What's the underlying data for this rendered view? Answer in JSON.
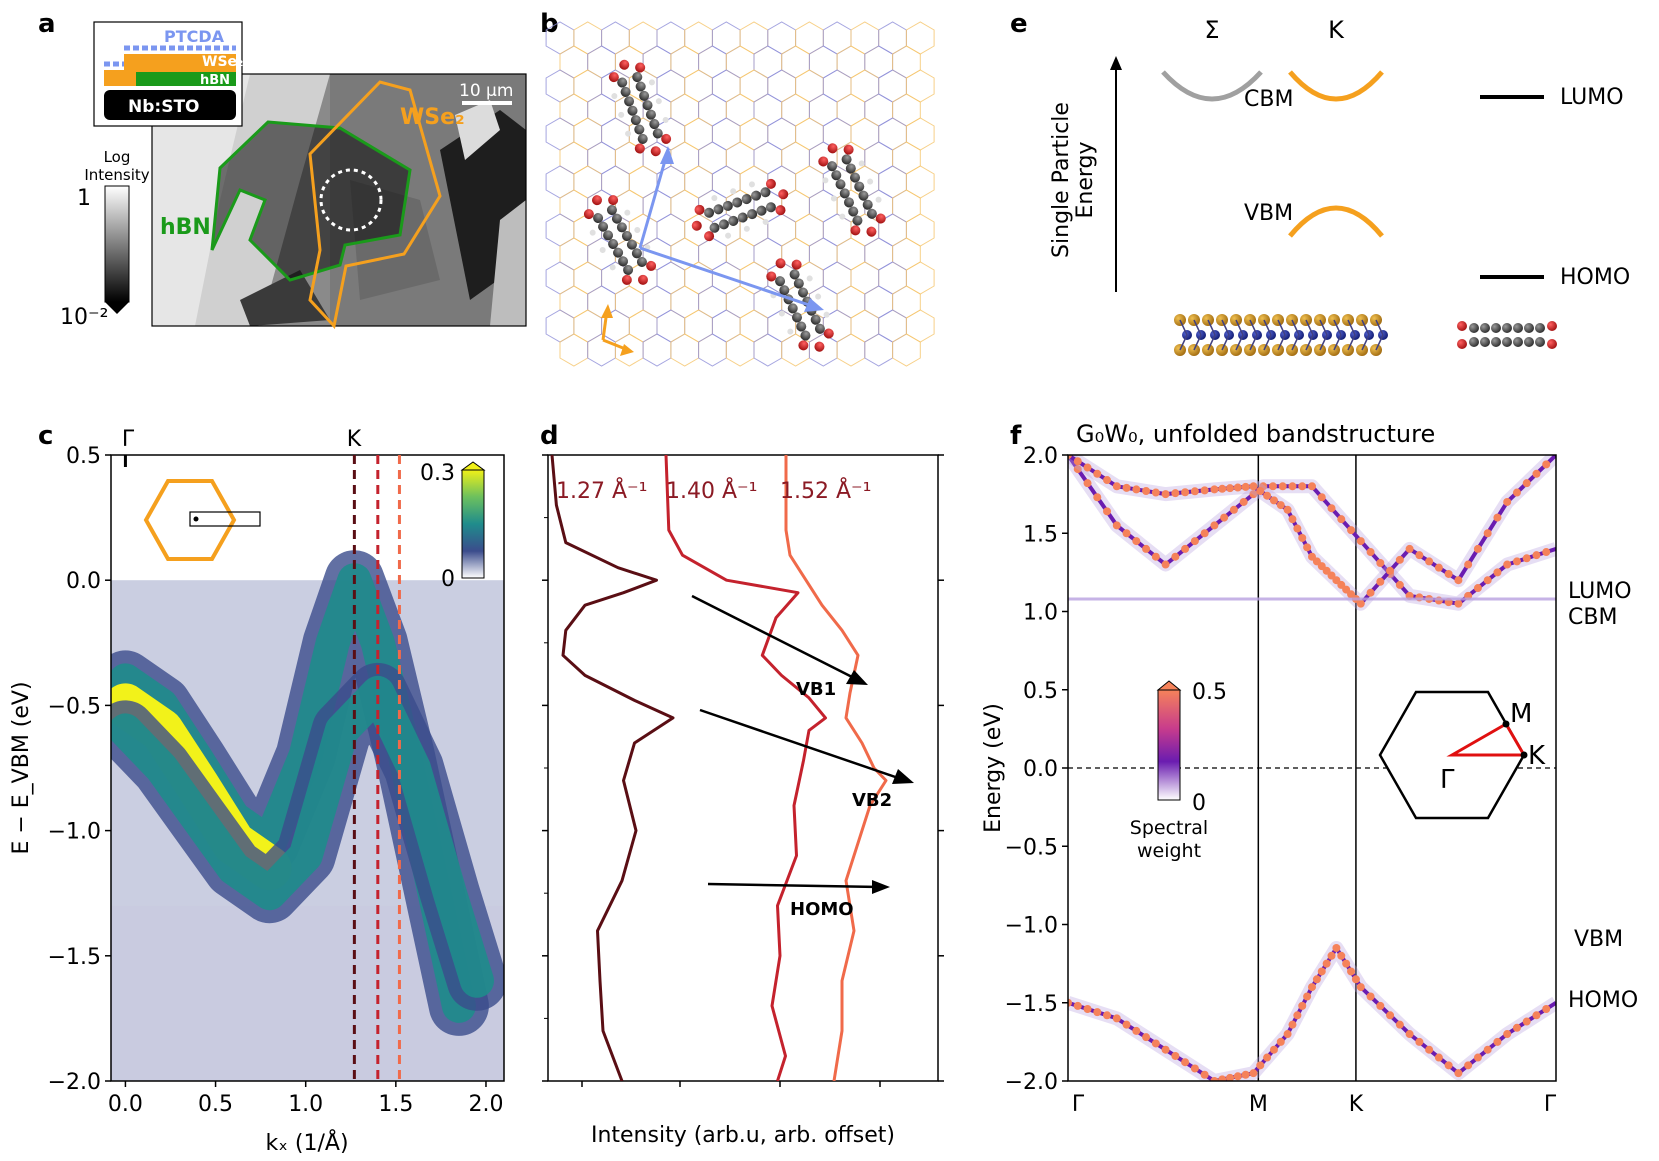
{
  "panel_letters": {
    "a": "a",
    "b": "b",
    "c": "c",
    "d": "d",
    "e": "e",
    "f": "f"
  },
  "panel_a": {
    "stack_layers": [
      "PTCDA",
      "WSe₂",
      "hBN",
      "Nb:STO"
    ],
    "colorbar_title": [
      "Log",
      "Intensity"
    ],
    "colorbar_max": "1",
    "colorbar_min": "10⁻²",
    "scalebar": "10 μm",
    "label_hbn": "hBN",
    "label_wse2": "WSe₂",
    "colors": {
      "ptcda": "#7b96f0",
      "wse2": "#f5a01e",
      "hbn": "#1a9a1a",
      "substrate": "#000000"
    }
  },
  "panel_b": {
    "lattice_colors": {
      "a": "#f5c46a",
      "b": "#8f8fd8"
    },
    "vector_colors": {
      "molecule": "#7b96f0",
      "substrate": "#f5a01e"
    }
  },
  "panel_e": {
    "ylabel": [
      "Single Particle",
      "Energy"
    ],
    "top_labels": [
      "Σ",
      "K"
    ],
    "level_labels": [
      "CBM",
      "VBM",
      "LUMO",
      "HOMO"
    ]
  },
  "panel_c": {
    "top_labels": [
      "Γ",
      "K"
    ],
    "xlabel": "kₓ (1/Å)",
    "ylabel": "E − E_VBM (eV)",
    "xticks": [
      "0.0",
      "0.5",
      "1.0",
      "1.5",
      "2.0"
    ],
    "yticks": [
      "0.5",
      "0.0",
      "−0.5",
      "−1.0",
      "−1.5",
      "−2.0"
    ],
    "colorbar_ticks": [
      "0.3",
      "0"
    ],
    "cut_colors": [
      "#5a0e14",
      "#c4222d",
      "#f06a4a"
    ]
  },
  "panel_d": {
    "cut_labels": [
      "1.27 Å⁻¹",
      "1.40 Å⁻¹",
      "1.52 Å⁻¹"
    ],
    "arrow_labels": [
      "VB1",
      "VB2",
      "HOMO"
    ],
    "xlabel": "Intensity (arb.u, arb. offset)"
  },
  "panel_f": {
    "title": "G₀W₀, unfolded bandstructure",
    "ylabel": "Energy (eV)",
    "yticks": [
      "2.0",
      "1.5",
      "1.0",
      "0.5",
      "0.0",
      "−0.5",
      "−1.0",
      "−1.5",
      "−2.0"
    ],
    "xticks": [
      "Γ",
      "M",
      "K",
      "Γ"
    ],
    "side_labels": [
      "LUMO",
      "CBM",
      "VBM",
      "HOMO"
    ],
    "colorbar_ticks": [
      "0.5",
      "0"
    ],
    "colorbar_label": [
      "Spectral",
      "weight"
    ],
    "bz_labels": [
      "M",
      "K",
      "Γ"
    ]
  },
  "chart_data": [
    {
      "type": "heatmap",
      "xlabel": "kₓ (1/Å)",
      "ylabel": "E − E_VBM (eV)",
      "xlim": [
        -0.08,
        2.1
      ],
      "ylim": [
        -2.0,
        0.5
      ],
      "clim": [
        0,
        0.3
      ],
      "vertical_cuts": [
        1.27,
        1.4,
        1.52
      ],
      "bands": [
        {
          "name": "",
          "x": [
            0.0,
            0.2,
            0.4,
            0.6,
            0.8,
            1.0,
            1.15,
            1.27,
            1.4,
            1.55,
            1.7,
            1.85
          ],
          "y": [
            -0.4,
            -0.5,
            -0.72,
            -0.95,
            -1.05,
            -0.7,
            -0.25,
            0.0,
            -0.25,
            -0.7,
            -1.2,
            -1.7
          ]
        },
        {
          "name": "",
          "x": [
            0.0,
            0.2,
            0.4,
            0.6,
            0.8,
            1.0,
            1.2,
            1.4,
            1.6,
            1.8,
            1.95
          ],
          "y": [
            -0.6,
            -0.75,
            -0.95,
            -1.15,
            -1.25,
            -1.1,
            -0.6,
            -0.45,
            -0.75,
            -1.25,
            -1.6
          ]
        }
      ]
    },
    {
      "type": "line",
      "xlabel": "Intensity (arb.u, arb. offset)",
      "ylim": [
        -2.0,
        0.5
      ],
      "series": [
        {
          "name": "1.27 Å⁻¹",
          "y": [
            0.5,
            0.3,
            0.15,
            0.05,
            0.0,
            -0.05,
            -0.1,
            -0.2,
            -0.3,
            -0.38,
            -0.48,
            -0.55,
            -0.65,
            -0.8,
            -1.0,
            -1.2,
            -1.4,
            -1.6,
            -1.8,
            -2.0
          ],
          "x": [
            0.0,
            0.08,
            0.25,
            1.2,
            1.9,
            1.3,
            0.6,
            0.25,
            0.2,
            0.6,
            1.5,
            2.2,
            1.5,
            1.3,
            1.6,
            1.2,
            0.9,
            0.8,
            1.0,
            1.2
          ]
        },
        {
          "name": "1.40 Å⁻¹",
          "y": [
            0.5,
            0.2,
            0.1,
            0.0,
            -0.05,
            -0.15,
            -0.3,
            -0.38,
            -0.47,
            -0.55,
            -0.6,
            -0.72,
            -0.9,
            -1.1,
            -1.3,
            -1.5,
            -1.7,
            -1.9,
            -2.0
          ],
          "x": [
            0.0,
            0.05,
            0.3,
            1.1,
            2.4,
            2.0,
            1.75,
            2.1,
            2.6,
            2.9,
            2.6,
            2.5,
            2.4,
            2.3,
            2.1,
            2.0,
            2.0,
            2.1,
            2.1
          ]
        },
        {
          "name": "1.52 Å⁻¹",
          "y": [
            0.5,
            0.2,
            0.1,
            0.0,
            -0.1,
            -0.2,
            -0.3,
            -0.45,
            -0.55,
            -0.65,
            -0.75,
            -0.8,
            -0.9,
            -1.0,
            -1.2,
            -1.4,
            -1.6,
            -1.8,
            -2.0
          ],
          "x": [
            0.0,
            0.0,
            0.1,
            0.5,
            0.9,
            1.4,
            1.8,
            1.6,
            1.5,
            1.9,
            2.2,
            2.5,
            2.2,
            1.8,
            1.6,
            1.6,
            1.5,
            1.3,
            1.3
          ]
        }
      ]
    },
    {
      "type": "scatter",
      "title": "G₀W₀, unfolded bandstructure",
      "ylabel": "Energy (eV)",
      "ylim": [
        -2.0,
        2.0
      ],
      "x_ticks": [
        "Γ",
        "M",
        "K",
        "Γ"
      ],
      "clim": [
        0,
        0.5
      ],
      "bands": [
        {
          "name": "",
          "x": [
            0.0,
            0.1,
            0.2,
            0.3,
            0.4,
            0.5,
            0.6,
            0.7,
            0.8,
            0.9,
            1.0
          ],
          "y": [
            2.0,
            1.55,
            1.3,
            1.55,
            1.8,
            1.8,
            1.45,
            1.1,
            1.05,
            1.3,
            1.4
          ]
        },
        {
          "name": "",
          "x": [
            0.0,
            0.1,
            0.2,
            0.3,
            0.38,
            0.45,
            0.5,
            0.55,
            0.6,
            0.7,
            0.8,
            0.9,
            1.0
          ],
          "y": [
            2.0,
            1.8,
            1.75,
            1.78,
            1.8,
            1.65,
            1.35,
            1.2,
            1.05,
            1.4,
            1.2,
            1.7,
            2.0
          ]
        },
        {
          "name": "",
          "x": [
            0.0,
            0.1,
            0.2,
            0.3,
            0.38,
            0.45,
            0.5,
            0.55,
            0.6,
            0.7,
            0.8,
            0.9,
            1.0
          ],
          "y": [
            -1.5,
            -1.6,
            -1.8,
            -2.0,
            -1.95,
            -1.7,
            -1.4,
            -1.15,
            -1.4,
            -1.7,
            -1.95,
            -1.7,
            -1.5
          ]
        },
        {
          "name": "",
          "x": [
            0.0,
            0.2,
            0.4,
            0.6,
            0.8,
            1.0
          ],
          "y": [
            1.08,
            1.08,
            1.08,
            1.08,
            1.08,
            1.08
          ]
        }
      ]
    }
  ]
}
